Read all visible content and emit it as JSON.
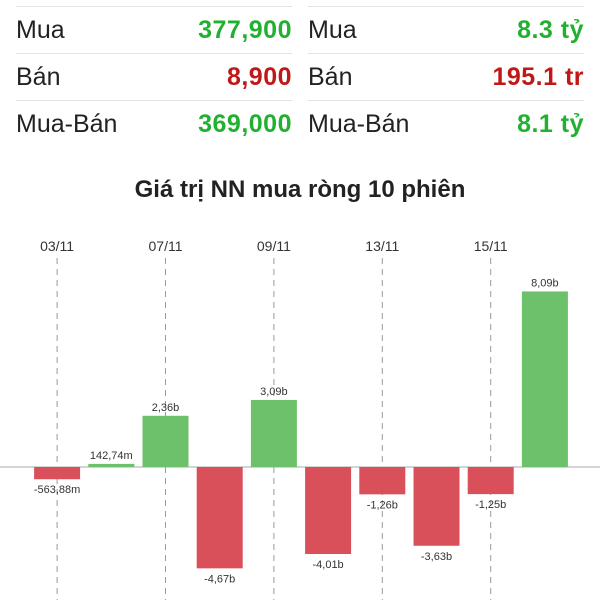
{
  "stats": {
    "volume": [
      {
        "label": "Mua",
        "value": "377,900",
        "tone": "pos"
      },
      {
        "label": "Bán",
        "value": "8,900",
        "tone": "neg"
      },
      {
        "label": "Mua-Bán",
        "value": "369,000",
        "tone": "pos"
      }
    ],
    "value": [
      {
        "label": "Mua",
        "value": "8.3 tỷ",
        "tone": "pos"
      },
      {
        "label": "Bán",
        "value": "195.1 tr",
        "tone": "neg"
      },
      {
        "label": "Mua-Bán",
        "value": "8.1 tỷ",
        "tone": "pos"
      }
    ]
  },
  "colors": {
    "positive_text": "#22b030",
    "negative_text": "#c01818",
    "positive_bar": "#6cc16a",
    "negative_bar": "#d9505a"
  },
  "chart_data": {
    "type": "bar",
    "title": "Giá trị NN mua ròng 10 phiên",
    "x_tick_labels": [
      "03/11",
      "07/11",
      "09/11",
      "13/11",
      "15/11"
    ],
    "x_tick_bars": [
      0,
      2,
      4,
      6,
      8
    ],
    "values": [
      -0.56388,
      0.14274,
      2.36,
      -4.67,
      3.09,
      -4.01,
      -1.26,
      -3.63,
      -1.25,
      8.09
    ],
    "data_labels": [
      "-563,88m",
      "142,74m",
      "2,36b",
      "-4,67b",
      "3,09b",
      "-4,01b",
      "-1,26b",
      "-3,63b",
      "-1,25b",
      "8,09b"
    ],
    "ylim": [
      -5.2,
      9.6
    ],
    "grid": "vertical dashed lines at x ticks"
  }
}
